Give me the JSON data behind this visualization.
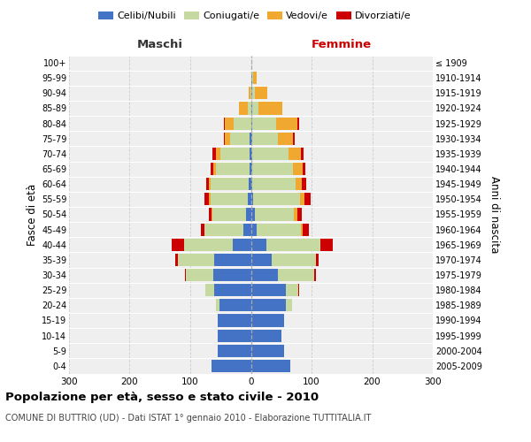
{
  "age_groups": [
    "0-4",
    "5-9",
    "10-14",
    "15-19",
    "20-24",
    "25-29",
    "30-34",
    "35-39",
    "40-44",
    "45-49",
    "50-54",
    "55-59",
    "60-64",
    "65-69",
    "70-74",
    "75-79",
    "80-84",
    "85-89",
    "90-94",
    "95-99",
    "100+"
  ],
  "birth_years": [
    "2005-2009",
    "2000-2004",
    "1995-1999",
    "1990-1994",
    "1985-1989",
    "1980-1984",
    "1975-1979",
    "1970-1974",
    "1965-1969",
    "1960-1964",
    "1955-1959",
    "1950-1954",
    "1945-1949",
    "1940-1944",
    "1935-1939",
    "1930-1934",
    "1925-1929",
    "1920-1924",
    "1915-1919",
    "1910-1914",
    "≤ 1909"
  ],
  "colors": {
    "celibi": "#4472c4",
    "coniugati": "#c5d9a0",
    "vedovi": "#f0a830",
    "divorziati": "#cc0000"
  },
  "males": {
    "celibi": [
      65,
      55,
      55,
      55,
      52,
      60,
      62,
      60,
      30,
      12,
      8,
      5,
      3,
      2,
      2,
      2,
      0,
      0,
      0,
      0,
      0
    ],
    "coniugati": [
      0,
      0,
      0,
      0,
      5,
      15,
      45,
      60,
      80,
      65,
      55,
      62,
      63,
      55,
      48,
      33,
      28,
      5,
      1,
      0,
      0
    ],
    "vedovi": [
      0,
      0,
      0,
      0,
      0,
      0,
      0,
      0,
      0,
      0,
      2,
      2,
      3,
      5,
      8,
      8,
      15,
      15,
      2,
      0,
      0
    ],
    "divorziati": [
      0,
      0,
      0,
      0,
      0,
      0,
      2,
      5,
      20,
      5,
      5,
      7,
      5,
      5,
      5,
      2,
      2,
      0,
      0,
      0,
      0
    ]
  },
  "females": {
    "nubili": [
      65,
      55,
      50,
      55,
      58,
      58,
      45,
      35,
      25,
      10,
      6,
      3,
      2,
      2,
      2,
      2,
      2,
      2,
      2,
      2,
      0
    ],
    "coniugate": [
      0,
      0,
      0,
      0,
      10,
      20,
      60,
      72,
      90,
      72,
      65,
      78,
      72,
      68,
      60,
      42,
      40,
      10,
      5,
      2,
      0
    ],
    "vedove": [
      0,
      0,
      0,
      0,
      0,
      0,
      0,
      0,
      0,
      3,
      5,
      8,
      10,
      15,
      20,
      25,
      35,
      40,
      20,
      5,
      0
    ],
    "divorziate": [
      0,
      0,
      0,
      0,
      0,
      2,
      3,
      5,
      20,
      10,
      8,
      9,
      7,
      5,
      5,
      3,
      2,
      0,
      0,
      0,
      0
    ]
  },
  "title": "Popolazione per età, sesso e stato civile - 2010",
  "subtitle": "COMUNE DI BUTTRIO (UD) - Dati ISTAT 1° gennaio 2010 - Elaborazione TUTTITALIA.IT",
  "label_maschi": "Maschi",
  "label_femmine": "Femmine",
  "ylabel_left": "Fasce di età",
  "ylabel_right": "Anni di nascita",
  "xlim": 300,
  "bg_color": "#ffffff",
  "plot_bg": "#efefef",
  "grid_color": "#cccccc",
  "legend_labels": [
    "Celibi/Nubili",
    "Coniugati/e",
    "Vedovi/e",
    "Divorziati/e"
  ]
}
